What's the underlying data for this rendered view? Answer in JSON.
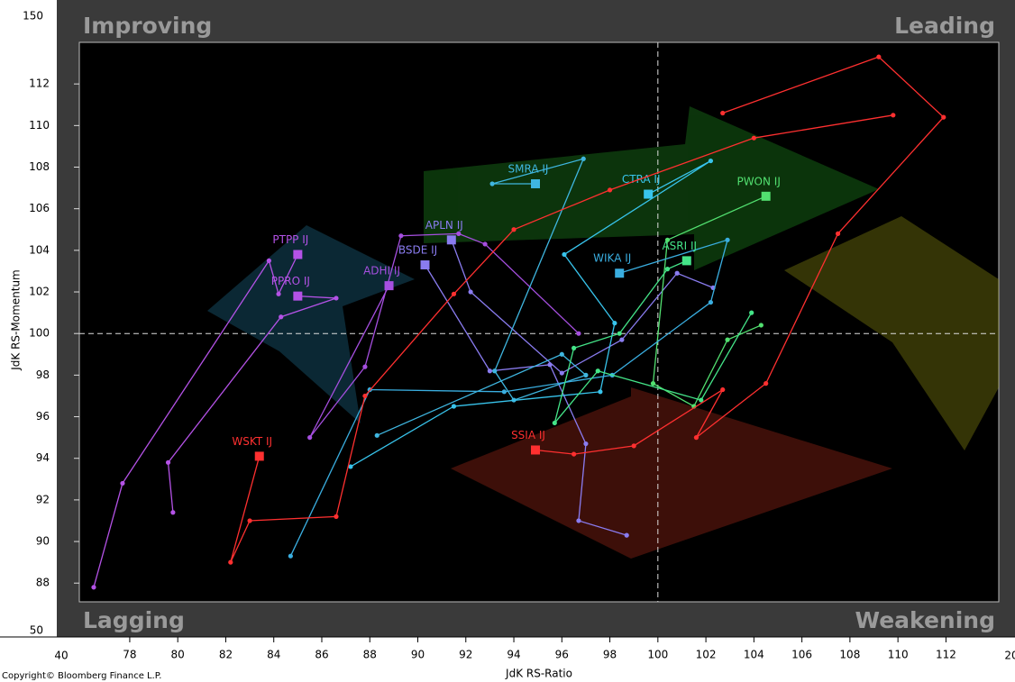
{
  "chart_data": {
    "type": "rrg",
    "x_label": "JdK RS-Ratio",
    "y_label": "JdK RS-Momentum",
    "quadrants": {
      "top_left": "Improving",
      "top_right": "Leading",
      "bottom_left": "Lagging",
      "bottom_right": "Weakening"
    },
    "axis_break_labels": {
      "y_top": "150",
      "y_bottom": "50",
      "x_left": "40",
      "x_right": "20"
    },
    "copyright": "Copyright© Bloomberg Finance L.P.",
    "xlim": [
      75.9,
      114.2
    ],
    "ylim": [
      87.1,
      114.0
    ],
    "xticks": [
      78,
      80,
      82,
      84,
      86,
      88,
      90,
      92,
      94,
      96,
      98,
      100,
      102,
      104,
      106,
      108,
      110,
      112
    ],
    "yticks": [
      88,
      90,
      92,
      94,
      96,
      98,
      100,
      102,
      104,
      106,
      108,
      110,
      112
    ],
    "crosshair": [
      100,
      100
    ],
    "series": [
      {
        "name": "PTPP IJ",
        "color": "#b452e6",
        "x": [
          76.5,
          77.7,
          83.8,
          84.2,
          85.0
        ],
        "y": [
          87.8,
          92.8,
          103.5,
          101.9,
          103.8
        ]
      },
      {
        "name": "PPRO IJ",
        "color": "#b452e6",
        "x": [
          79.8,
          79.6,
          84.3,
          86.6,
          85.0
        ],
        "y": [
          91.4,
          93.8,
          100.8,
          101.7,
          101.8
        ]
      },
      {
        "name": "ADHI IJ",
        "color": "#a64fe0",
        "x": [
          96.7,
          92.8,
          91.7,
          89.3,
          87.8,
          85.5,
          88.8
        ],
        "y": [
          100.0,
          104.3,
          104.8,
          104.7,
          98.4,
          95.0,
          102.3
        ]
      },
      {
        "name": "BSDE IJ",
        "color": "#8a7cf0",
        "x": [
          98.7,
          96.7,
          97.0,
          95.5,
          93.0,
          90.3
        ],
        "y": [
          90.3,
          91.0,
          94.7,
          98.5,
          98.2,
          103.3
        ]
      },
      {
        "name": "APLN IJ",
        "color": "#8a7cf0",
        "x": [
          102.3,
          100.8,
          98.5,
          96.0,
          92.2,
          91.4
        ],
        "y": [
          102.2,
          102.9,
          99.7,
          98.1,
          102.0,
          104.5
        ]
      },
      {
        "name": "SMRA IJ",
        "color": "#3fb6e0",
        "x": [
          88.3,
          96.0,
          97.0,
          94.0,
          93.2,
          96.9,
          93.1,
          94.9
        ],
        "y": [
          95.1,
          99.0,
          98.0,
          96.8,
          98.2,
          108.4,
          107.2,
          107.2
        ]
      },
      {
        "name": "CTRA IJ",
        "color": "#38c4ec",
        "x": [
          87.2,
          91.5,
          97.6,
          98.2,
          96.1,
          102.2,
          99.6
        ],
        "y": [
          93.6,
          96.5,
          97.2,
          100.5,
          103.8,
          108.3,
          106.7
        ]
      },
      {
        "name": "PWON IJ",
        "color": "#52e070",
        "x": [
          104.3,
          102.9,
          101.5,
          99.8,
          100.4,
          104.5
        ],
        "y": [
          100.4,
          99.7,
          96.5,
          97.6,
          104.5,
          106.6
        ]
      },
      {
        "name": "WIKA IJ",
        "color": "#3aaee0",
        "x": [
          84.7,
          88.0,
          93.6,
          98.1,
          102.2,
          102.9,
          98.4
        ],
        "y": [
          89.3,
          97.3,
          97.2,
          98.0,
          101.5,
          104.5,
          102.9
        ]
      },
      {
        "name": "ASRI IJ",
        "color": "#44e488",
        "x": [
          103.9,
          101.8,
          97.5,
          95.7,
          96.5,
          98.4,
          100.4,
          101.2
        ],
        "y": [
          101.0,
          96.8,
          98.2,
          95.7,
          99.3,
          100.0,
          103.1,
          103.5
        ]
      },
      {
        "name": "WSKT IJ",
        "color": "#ff3030",
        "x": [
          109.8,
          104.0,
          98.0,
          94.0,
          91.5,
          87.8,
          86.6,
          83.0,
          82.2,
          83.4
        ],
        "y": [
          110.5,
          109.4,
          106.9,
          105.0,
          101.9,
          97.0,
          91.2,
          91.0,
          89.0,
          94.1
        ]
      },
      {
        "name": "SSIA IJ",
        "color": "#ff3030",
        "x": [
          102.7,
          109.2,
          111.9,
          107.5,
          104.5,
          101.6,
          102.7,
          99.0,
          96.5,
          94.9
        ],
        "y": [
          110.6,
          113.3,
          110.4,
          104.8,
          97.6,
          95.0,
          97.3,
          94.6,
          94.2,
          94.4
        ]
      }
    ]
  }
}
